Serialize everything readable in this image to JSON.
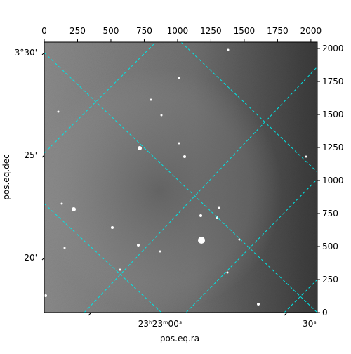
{
  "chart_data": {
    "type": "image",
    "xlabel": "pos.eq.ra",
    "ylabel": "pos.eq.dec",
    "xlim": [
      0,
      2048
    ],
    "xticks": [
      0,
      250,
      500,
      750,
      1000,
      1250,
      1500,
      1750,
      2000
    ],
    "ylim": [
      0,
      2048
    ],
    "yticks": [
      0,
      250,
      500,
      750,
      1000,
      1250,
      1500,
      1750,
      2000
    ],
    "ra_tick_labels": [
      "23ʰ23ᵐ00ˢ",
      "30ˢ"
    ],
    "dec_tick_labels": [
      "-3°30'",
      "25'",
      "20'"
    ]
  }
}
